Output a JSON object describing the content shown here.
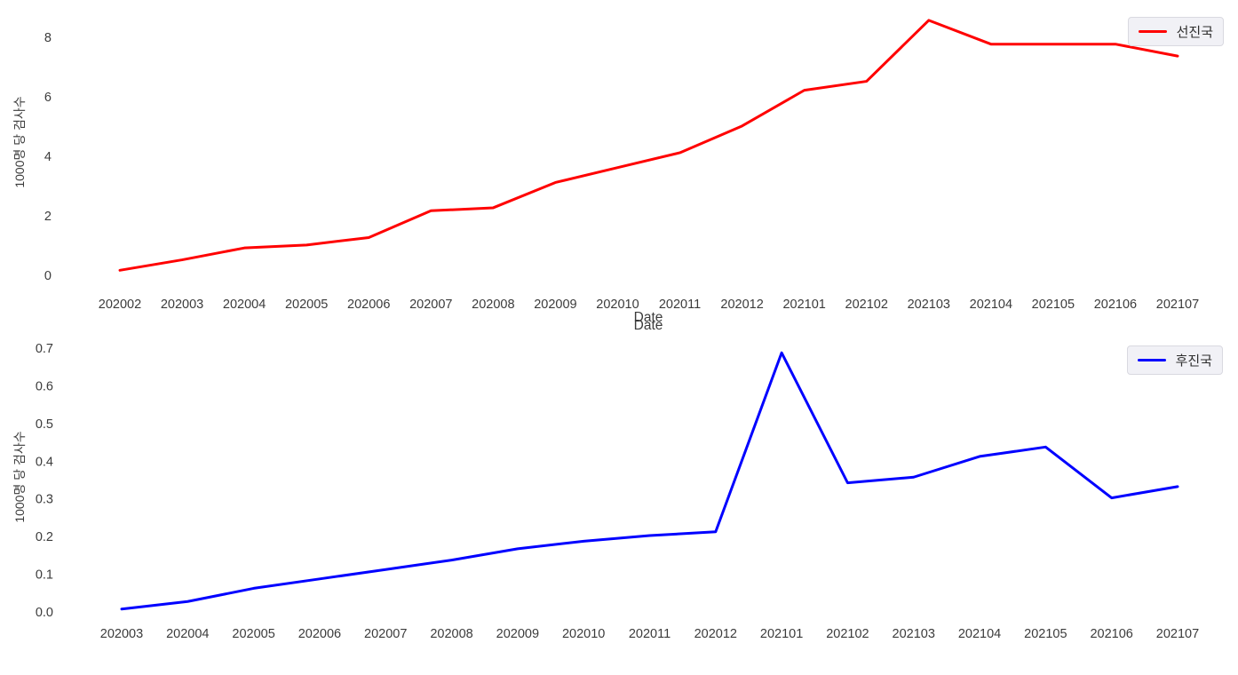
{
  "figure": {
    "background": "#ffffff",
    "text_color": "#3b3b3b"
  },
  "chart_data": [
    {
      "type": "line",
      "title": "",
      "xlabel": "Date",
      "ylabel": "1000명 당 검사수",
      "legend_position": "upper right",
      "grid": false,
      "categories": [
        "202002",
        "202003",
        "202004",
        "202005",
        "202006",
        "202007",
        "202008",
        "202009",
        "202010",
        "202011",
        "202012",
        "202101",
        "202102",
        "202103",
        "202104",
        "202105",
        "202106",
        "202107"
      ],
      "series": [
        {
          "name": "선진국",
          "color": "#ff0000",
          "values": [
            0.2,
            0.55,
            0.95,
            1.05,
            1.3,
            2.2,
            2.3,
            3.15,
            3.65,
            4.15,
            5.05,
            6.25,
            6.55,
            8.6,
            7.8,
            7.8,
            7.8,
            7.4
          ]
        }
      ],
      "yticks": [
        0,
        2,
        4,
        6,
        8
      ],
      "ytick_labels": [
        "0",
        "2",
        "4",
        "6",
        "8"
      ],
      "ylim": [
        0,
        9.0
      ]
    },
    {
      "type": "line",
      "title": "",
      "xlabel": "Date",
      "ylabel": "1000명 당 검사수",
      "legend_position": "upper right",
      "grid": false,
      "categories": [
        "202003",
        "202004",
        "202005",
        "202006",
        "202007",
        "202008",
        "202009",
        "202010",
        "202011",
        "202012",
        "202101",
        "202102",
        "202103",
        "202104",
        "202105",
        "202106",
        "202107"
      ],
      "series": [
        {
          "name": "후진국",
          "color": "#0000ff",
          "values": [
            0.01,
            0.03,
            0.065,
            0.09,
            0.115,
            0.14,
            0.17,
            0.19,
            0.205,
            0.215,
            0.69,
            0.345,
            0.36,
            0.415,
            0.44,
            0.305,
            0.335
          ]
        }
      ],
      "yticks": [
        0.0,
        0.1,
        0.2,
        0.3,
        0.4,
        0.5,
        0.6,
        0.7
      ],
      "ytick_labels": [
        "0.0",
        "0.1",
        "0.2",
        "0.3",
        "0.4",
        "0.5",
        "0.6",
        "0.7"
      ],
      "ylim": [
        0,
        0.73
      ]
    }
  ]
}
